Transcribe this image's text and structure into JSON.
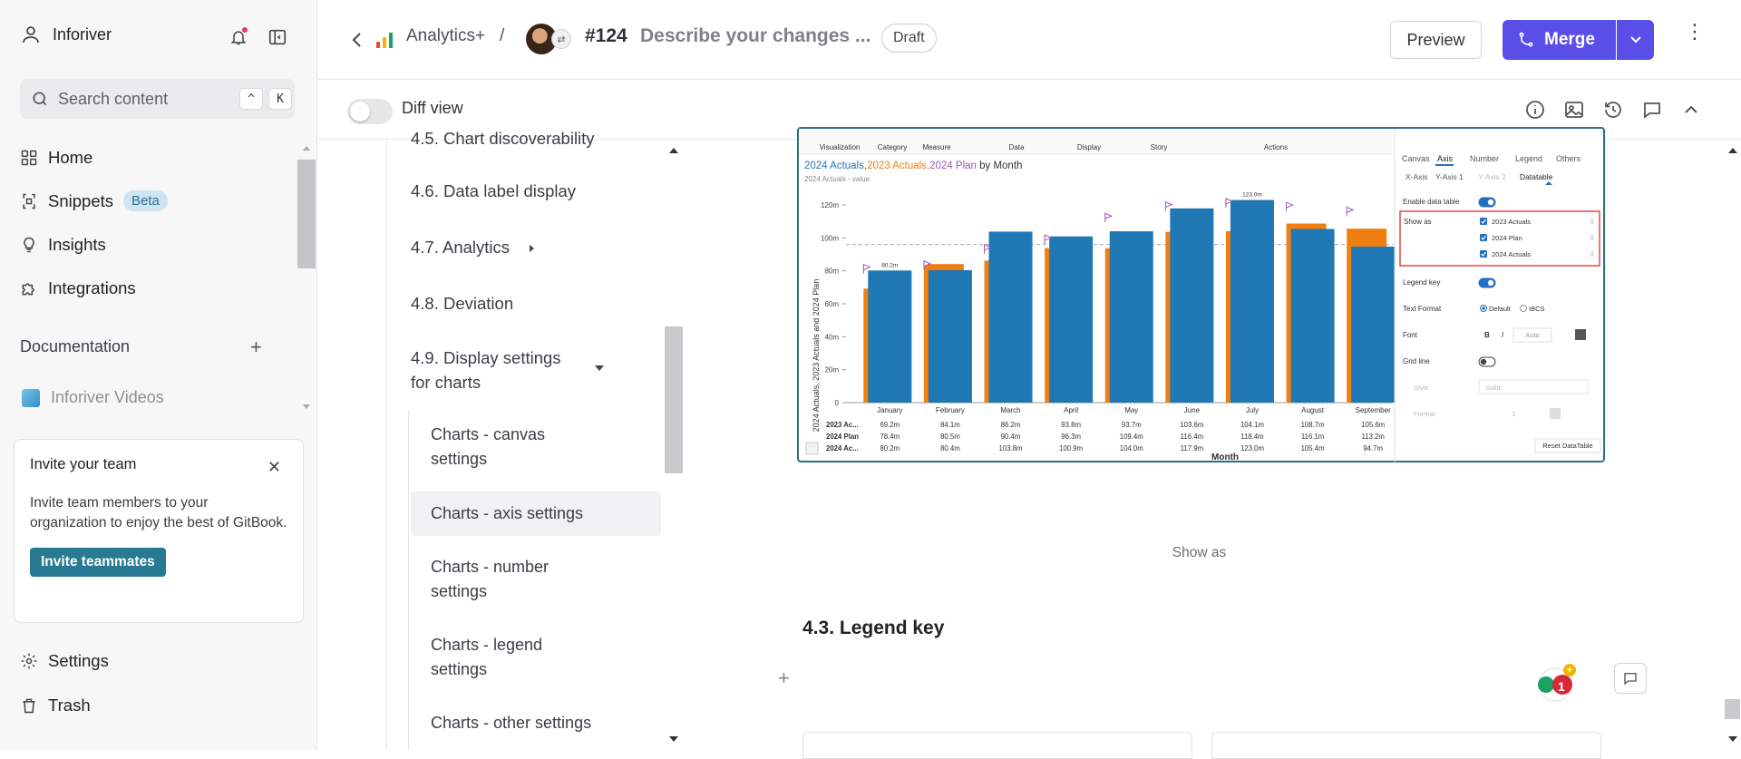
{
  "sidebar": {
    "org_name": "Inforiver",
    "search": {
      "placeholder": "Search content",
      "kbd_ctrl": "^",
      "kbd_key": "K"
    },
    "nav": [
      {
        "label": "Home",
        "icon": "grid-icon"
      },
      {
        "label": "Snippets",
        "icon": "snippet-icon",
        "badge": "Beta"
      },
      {
        "label": "Insights",
        "icon": "bulb-icon"
      },
      {
        "label": "Integrations",
        "icon": "puzzle-icon"
      }
    ],
    "documentation_heading": "Documentation",
    "doc_item": "Inforiver Videos",
    "invite": {
      "title": "Invite your team",
      "text": "Invite team members to your organization to enjoy the best of GitBook.",
      "button": "Invite teammates"
    },
    "bottom": [
      {
        "label": "Settings",
        "icon": "gear-icon"
      },
      {
        "label": "Trash",
        "icon": "trash-icon"
      }
    ]
  },
  "header": {
    "space_name": "Analytics+",
    "separator": "/",
    "change_number": "#124",
    "change_title": "Describe your changes ...",
    "status": "Draft",
    "preview_label": "Preview",
    "merge_label": "Merge",
    "diff_view_label": "Diff view"
  },
  "toc": {
    "items": [
      {
        "label": "4.5. Chart discoverability"
      },
      {
        "label": "4.6. Data label display"
      },
      {
        "label": "4.7. Analytics"
      },
      {
        "label": "4.8. Deviation"
      },
      {
        "label": "4.9. Display settings for charts"
      }
    ],
    "subitems": [
      {
        "label": "Charts - canvas settings"
      },
      {
        "label": "Charts - axis settings",
        "active": true
      },
      {
        "label": "Charts - number settings"
      },
      {
        "label": "Charts - legend settings"
      },
      {
        "label": "Charts - other settings"
      }
    ]
  },
  "content": {
    "caption": "Show as",
    "section_heading": "4.3. Legend key",
    "notification_count": "1"
  },
  "embedded_screenshot": {
    "toolbar": [
      "Visualization",
      "Category",
      "Measure",
      "Data",
      "Display",
      "Story",
      "Actions"
    ],
    "chart_title_parts": [
      "2024 Actuals,",
      "2023 Actuals,",
      "2024 Plan",
      " by Month"
    ],
    "chart_subtitle": "2024 Actuals - value",
    "y_axis_label": "2024 Actuals, 2023 Actuals and 2024 Plan",
    "x_axis_label": "Month",
    "panel_tabs": [
      "Canvas",
      "Axis",
      "Number",
      "Legend",
      "Others"
    ],
    "panel_subtabs": [
      "X-Axis",
      "Y-Axis 1",
      "Y-Axis 2",
      "Datatable"
    ],
    "panel_rows": {
      "enable_data_table": "Enable data table",
      "show_as": "Show as",
      "show_as_options": [
        "2023 Actuals",
        "2024 Plan",
        "2024 Actuals"
      ],
      "legend_key": "Legend key",
      "text_format": "Text Format",
      "text_format_options": [
        "Default",
        "IBCS"
      ],
      "font": "Font",
      "font_bold": "B",
      "font_italic": "I",
      "font_size": "Auto",
      "grid_line": "Grid line",
      "style": "Style",
      "style_value": "Solid",
      "format": "Format",
      "format_value": "1",
      "reset": "Reset DataTable"
    },
    "table_row_labels": [
      "2023 Ac...",
      "2024 Plan",
      "2024 Ac..."
    ]
  },
  "chart_data": {
    "type": "bar",
    "title": "2024 Actuals,2023 Actuals,2024 Plan by Month",
    "xlabel": "Month",
    "ylabel": "2024 Actuals, 2023 Actuals and 2024 Plan",
    "ylim": [
      0,
      130
    ],
    "yticks": [
      "0",
      "20m",
      "40m",
      "60m",
      "80m",
      "100m",
      "120m"
    ],
    "categories": [
      "January",
      "February",
      "March",
      "April",
      "May",
      "June",
      "July",
      "August",
      "September"
    ],
    "series": [
      {
        "name": "2023 Actuals",
        "values": [
          69.2,
          84.1,
          86.2,
          93.8,
          93.7,
          103.6,
          104.1,
          108.7,
          105.6
        ],
        "labels": [
          "69.2m",
          "84.1m",
          "86.2m",
          "93.8m",
          "93.7m",
          "103.6m",
          "104.1m",
          "108.7m",
          "105.6m"
        ],
        "color": "#f07f12"
      },
      {
        "name": "2024 Plan",
        "values": [
          78.4,
          80.5,
          90.4,
          96.3,
          109.4,
          116.4,
          118.4,
          116.1,
          113.2
        ],
        "labels": [
          "78.4m",
          "80.5m",
          "90.4m",
          "96.3m",
          "109.4m",
          "116.4m",
          "118.4m",
          "116.1m",
          "113.2m"
        ],
        "color": "#9b59b6"
      },
      {
        "name": "2024 Actuals",
        "values": [
          80.2,
          80.4,
          103.8,
          100.9,
          104.0,
          117.9,
          123.0,
          105.4,
          94.7
        ],
        "labels": [
          "80.2m",
          "80.4m",
          "103.8m",
          "100.9m",
          "104.0m",
          "117.9m",
          "123.0m",
          "105.4m",
          "94.7m"
        ],
        "color": "#1f77b4"
      }
    ],
    "data_labels": {
      "January": "80.2m",
      "July": "123.0m"
    },
    "reference_line": 96
  }
}
